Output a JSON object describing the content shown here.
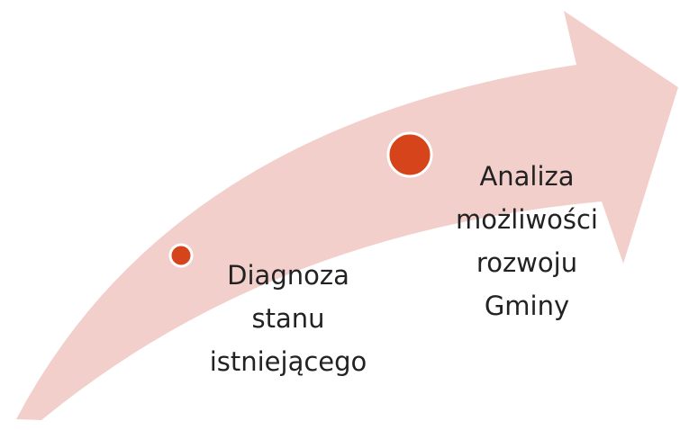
{
  "nodes": [
    {
      "lines": [
        "Diagnoza",
        "stanu",
        "istniejącego"
      ]
    },
    {
      "lines": [
        "Analiza",
        "możliwości",
        "rozwoju",
        "Gminy"
      ]
    }
  ]
}
